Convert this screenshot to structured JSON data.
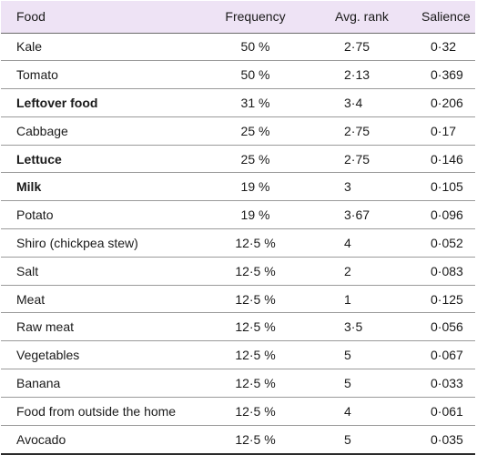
{
  "table": {
    "headers": {
      "food": "Food",
      "frequency": "Frequency",
      "rank": "Avg. rank",
      "salience": "Salience"
    },
    "rows": [
      {
        "food": "Kale",
        "frequency": "50 %",
        "rank": "2·75",
        "salience": "0·32",
        "bold": false
      },
      {
        "food": "Tomato",
        "frequency": "50 %",
        "rank": "2·13",
        "salience": "0·369",
        "bold": false
      },
      {
        "food": "Leftover food",
        "frequency": "31 %",
        "rank": "3·4",
        "salience": "0·206",
        "bold": true
      },
      {
        "food": "Cabbage",
        "frequency": "25 %",
        "rank": "2·75",
        "salience": "0·17",
        "bold": false
      },
      {
        "food": "Lettuce",
        "frequency": "25 %",
        "rank": "2·75",
        "salience": "0·146",
        "bold": true
      },
      {
        "food": "Milk",
        "frequency": "19 %",
        "rank": "3",
        "salience": "0·105",
        "bold": true
      },
      {
        "food": "Potato",
        "frequency": "19 %",
        "rank": "3·67",
        "salience": "0·096",
        "bold": false
      },
      {
        "food": "Shiro (chickpea stew)",
        "frequency": "12·5 %",
        "rank": "4",
        "salience": "0·052",
        "bold": false
      },
      {
        "food": "Salt",
        "frequency": "12·5 %",
        "rank": "2",
        "salience": "0·083",
        "bold": false
      },
      {
        "food": "Meat",
        "frequency": "12·5 %",
        "rank": "1",
        "salience": "0·125",
        "bold": false
      },
      {
        "food": "Raw meat",
        "frequency": "12·5 %",
        "rank": "3·5",
        "salience": "0·056",
        "bold": false
      },
      {
        "food": "Vegetables",
        "frequency": "12·5 %",
        "rank": "5",
        "salience": "0·067",
        "bold": false
      },
      {
        "food": "Banana",
        "frequency": "12·5 %",
        "rank": "5",
        "salience": "0·033",
        "bold": false
      },
      {
        "food": "Food from outside the home",
        "frequency": "12·5 %",
        "rank": "4",
        "salience": "0·061",
        "bold": false
      },
      {
        "food": "Avocado",
        "frequency": "12·5 %",
        "rank": "5",
        "salience": "0·035",
        "bold": false
      }
    ]
  }
}
